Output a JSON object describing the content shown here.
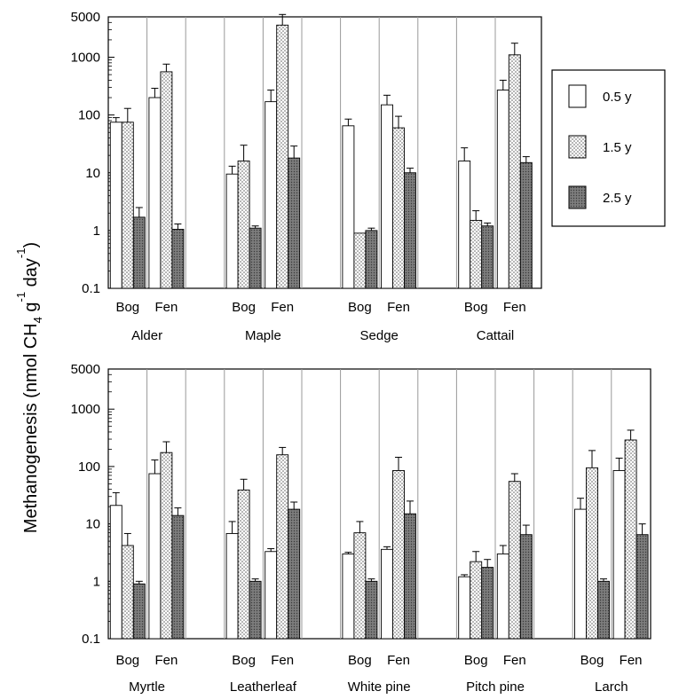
{
  "chart_data": {
    "type": "bar",
    "scale": "log",
    "ylabel": {
      "base": "Methanogenesis (nmol CH",
      "sub4": "4",
      "mid": " g",
      "sup1": "-1",
      "day": " day",
      "sup2": "-1",
      "close": ")"
    },
    "ylim": [
      0.1,
      5000
    ],
    "yticks": [
      "5000",
      "1000",
      "100",
      "10",
      "1",
      "0.1"
    ],
    "ytick_values": [
      5000,
      1000,
      100,
      10,
      1,
      0.1
    ],
    "subgroup_labels": [
      "Bog",
      "Fen"
    ],
    "series": [
      {
        "name": "0.5 y",
        "fill": "#ffffff"
      },
      {
        "name": "1.5 y",
        "fill": "dots"
      },
      {
        "name": "2.5 y",
        "fill": "#8a8a8a"
      }
    ],
    "panels": [
      {
        "groups": [
          {
            "name": "Alder",
            "bog": {
              "values": [
                75,
                75,
                1.7
              ],
              "err": [
                90,
                130,
                2.5
              ]
            },
            "fen": {
              "values": [
                200,
                560,
                1.05
              ],
              "err": [
                290,
                760,
                1.3
              ]
            }
          },
          {
            "name": "Maple",
            "bog": {
              "values": [
                9.5,
                16,
                1.1
              ],
              "err": [
                13,
                30,
                1.2
              ]
            },
            "fen": {
              "values": [
                170,
                3600,
                18
              ],
              "err": [
                270,
                5500,
                29
              ]
            }
          },
          {
            "name": "Sedge",
            "bog": {
              "values": [
                65,
                0.9,
                1.0
              ],
              "err": [
                85,
                0.9,
                1.1
              ]
            },
            "fen": {
              "values": [
                150,
                60,
                10
              ],
              "err": [
                220,
                95,
                12
              ]
            }
          },
          {
            "name": "Cattail",
            "bog": {
              "values": [
                16,
                1.5,
                1.2
              ],
              "err": [
                27,
                2.2,
                1.35
              ]
            },
            "fen": {
              "values": [
                270,
                1100,
                15
              ],
              "err": [
                400,
                1750,
                19
              ]
            }
          }
        ]
      },
      {
        "groups": [
          {
            "name": "Myrtle",
            "bog": {
              "values": [
                21,
                4.2,
                0.9
              ],
              "err": [
                35,
                6.8,
                1.0
              ]
            },
            "fen": {
              "values": [
                75,
                175,
                14
              ],
              "err": [
                130,
                270,
                19
              ]
            }
          },
          {
            "name": "Leatherleaf",
            "bog": {
              "values": [
                6.8,
                39,
                1.0
              ],
              "err": [
                11,
                60,
                1.1
              ]
            },
            "fen": {
              "values": [
                3.3,
                160,
                18
              ],
              "err": [
                3.7,
                215,
                24
              ]
            }
          },
          {
            "name": "White pine",
            "bog": {
              "values": [
                3.0,
                7,
                1.0
              ],
              "err": [
                3.2,
                11,
                1.1
              ]
            },
            "fen": {
              "values": [
                3.6,
                85,
                15
              ],
              "err": [
                4.0,
                145,
                25
              ]
            }
          },
          {
            "name": "Pitch pine",
            "bog": {
              "values": [
                1.2,
                2.2,
                1.75
              ],
              "err": [
                1.3,
                3.3,
                2.4
              ]
            },
            "fen": {
              "values": [
                3.0,
                55,
                6.5
              ],
              "err": [
                4.2,
                75,
                9.5
              ]
            }
          },
          {
            "name": "Larch",
            "bog": {
              "values": [
                18,
                95,
                1.0
              ],
              "err": [
                28,
                190,
                1.1
              ]
            },
            "fen": {
              "values": [
                85,
                290,
                6.5
              ],
              "err": [
                140,
                430,
                10
              ]
            }
          }
        ]
      }
    ]
  }
}
